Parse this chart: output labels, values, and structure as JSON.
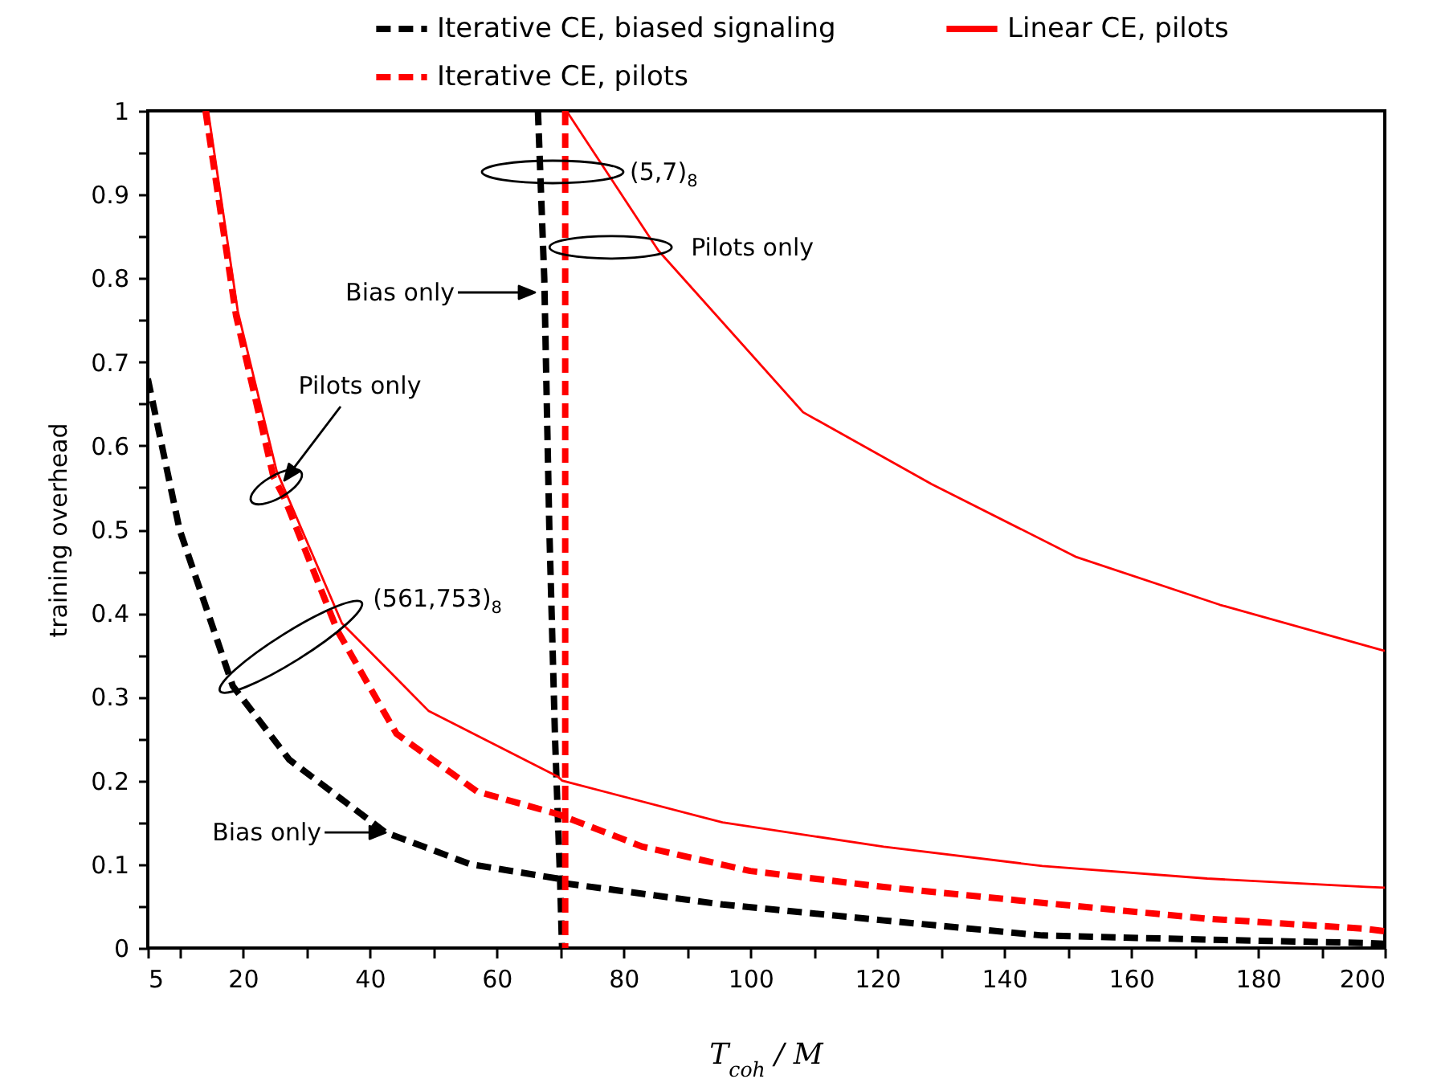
{
  "chart_data": {
    "type": "line",
    "xlabel": "T$_{coh}$ / M",
    "ylabel": "training overhead",
    "xlim": [
      5,
      200
    ],
    "ylim": [
      0,
      1
    ],
    "xticks": [
      5,
      {
        "value": 10,
        "label": null
      },
      20,
      {
        "value": 30,
        "label": null
      },
      40,
      {
        "value": 50,
        "label": null
      },
      60,
      {
        "value": 70,
        "label": null
      },
      80,
      {
        "value": 90,
        "label": null
      },
      100,
      {
        "value": 110,
        "label": null
      },
      120,
      {
        "value": 130,
        "label": null
      },
      140,
      {
        "value": 150,
        "label": null
      },
      160,
      {
        "value": 170,
        "label": null
      },
      180,
      {
        "value": 190,
        "label": null
      },
      200
    ],
    "yticks": [
      0,
      {
        "value": 0.05,
        "label": null
      },
      0.1,
      {
        "value": 0.15,
        "label": null
      },
      0.2,
      {
        "value": 0.25,
        "label": null
      },
      0.3,
      {
        "value": 0.35,
        "label": null
      },
      0.4,
      {
        "value": 0.45,
        "label": null
      },
      0.5,
      {
        "value": 0.55,
        "label": null
      },
      0.6,
      {
        "value": 0.65,
        "label": null
      },
      0.7,
      {
        "value": 0.75,
        "label": null
      },
      0.8,
      {
        "value": 0.85,
        "label": null
      },
      0.9,
      {
        "value": 0.95,
        "label": null
      },
      1
    ],
    "grid": false,
    "legend": "top",
    "series": [
      {
        "name": "Iterative CE, biased signaling",
        "color": "#000000",
        "line_style": "dashed",
        "x": [
          5,
          10,
          18.4,
          27.3,
          42.5,
          55.9,
          69.6,
          71,
          95.6,
          121,
          146,
          172,
          197,
          200
        ],
        "values": [
          0.68,
          0.5,
          0.313,
          0.225,
          0.138,
          0.1,
          0.083,
          0.077,
          0.052,
          0.033,
          0.015,
          0.01,
          0.006,
          0.005
        ]
      },
      {
        "color": "#000000",
        "line_style": "dashed",
        "x": [
          66.5,
          67.5,
          68.3,
          69.2,
          70,
          70.3
        ],
        "values": [
          1,
          0.8,
          0.5,
          0.25,
          0.08,
          0
        ]
      },
      {
        "name": "Iterative CE, pilots",
        "color": "#ff0000",
        "line_style": "dashed",
        "x": [
          14.1,
          18.9,
          24.8,
          26.5,
          34.9,
          44.2,
          56.9,
          69.6,
          70.3,
          83,
          100,
          121,
          146,
          172,
          197,
          200
        ],
        "values": [
          1,
          0.756,
          0.563,
          0.538,
          0.379,
          0.256,
          0.187,
          0.16,
          0.158,
          0.121,
          0.092,
          0.073,
          0.054,
          0.035,
          0.023,
          0.02
        ]
      },
      {
        "color": "#ff0000",
        "line_style": "dashed",
        "x": [
          70.8,
          70.8
        ],
        "values": [
          1,
          0
        ]
      },
      {
        "name": "Linear CE, pilots",
        "color": "#ff0000",
        "line_style": "solid",
        "x": [
          14.5,
          19.2,
          25.3,
          35.6,
          49.3,
          69.6,
          70.3,
          95.6,
          121,
          146,
          172,
          197,
          200
        ],
        "values": [
          1,
          0.76,
          0.57,
          0.388,
          0.283,
          0.205,
          0.2,
          0.15,
          0.121,
          0.098,
          0.083,
          0.073,
          0.072
        ]
      },
      {
        "color": "#ff0000",
        "line_style": "solid",
        "x": [
          71,
          85.5,
          108.3,
          128.6,
          151.4,
          174,
          199.5,
          200
        ],
        "values": [
          1,
          0.833,
          0.64,
          0.554,
          0.467,
          0.41,
          0.356,
          0.355
        ]
      }
    ],
    "annotations": [
      "(5,7)$_{8}$",
      {
        "text": "Pilots only",
        "x": 85.3,
        "y": 0.837
      },
      "Bias only",
      "Pilots only",
      {
        "text": "(561,753)$_{8}$",
        "x": 34.9,
        "y": 0.379
      },
      {
        "text": "Bias only",
        "x": 42.5,
        "y": 0.138
      }
    ]
  }
}
